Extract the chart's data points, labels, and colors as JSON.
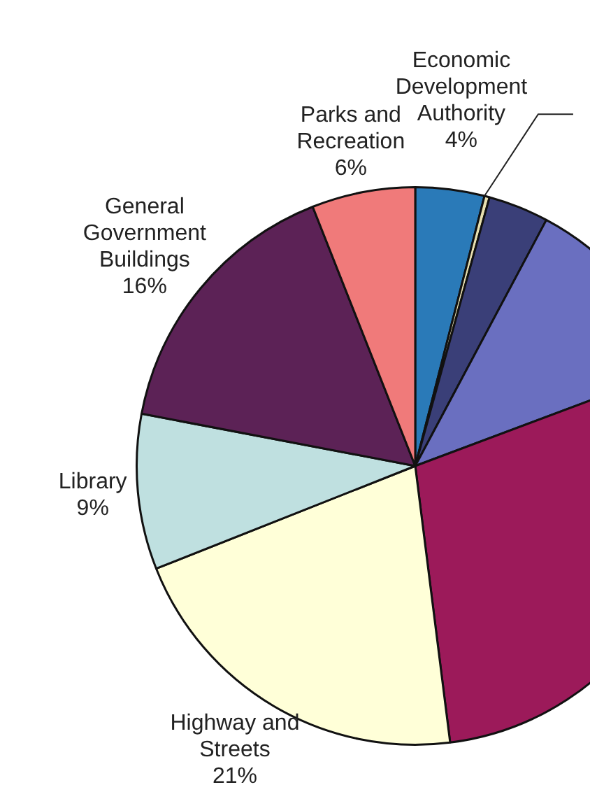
{
  "chart_data": {
    "type": "pie",
    "categories": [
      "Economic Development Authority",
      null,
      null,
      null,
      null,
      "Highway and Streets",
      "Library",
      "General Government Buildings",
      "Parks and Recreation"
    ],
    "values": [
      4,
      0.3,
      3.5,
      11.5,
      28.7,
      21,
      9,
      16,
      6
    ],
    "value_labels": [
      "4%",
      null,
      null,
      null,
      null,
      "21%",
      "9%",
      "16%",
      "6%"
    ],
    "colors": [
      "#2a7ab8",
      "#e8e0b0",
      "#3a3f78",
      "#6a6fc0",
      "#9c1a5a",
      "#ffffd8",
      "#bfe0e0",
      "#5c2256",
      "#f07a7a"
    ],
    "legend": false
  }
}
